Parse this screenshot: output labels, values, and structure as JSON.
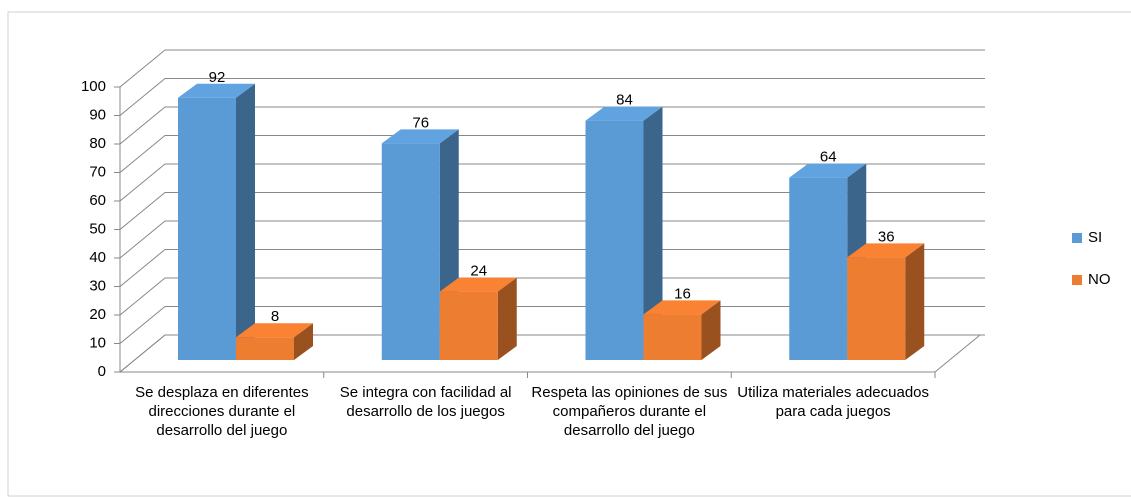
{
  "chart_data": {
    "type": "bar3d",
    "categories": [
      "Se desplaza en diferentes direcciones durante el desarrollo del juego",
      "Se integra con facilidad al desarrollo de los juegos",
      "Respeta las opiniones de sus compañeros durante el desarrollo del juego",
      "Utiliza materiales adecuados para cada juegos"
    ],
    "series": [
      {
        "name": "SI",
        "color": "#5b9bd5",
        "values": [
          92,
          76,
          84,
          64
        ]
      },
      {
        "name": "NO",
        "color": "#ed7d31",
        "values": [
          8,
          24,
          16,
          36
        ]
      }
    ],
    "ylim": [
      0,
      100
    ],
    "yticks": [
      0,
      10,
      20,
      30,
      40,
      50,
      60,
      70,
      80,
      90,
      100
    ],
    "grid": true,
    "legend": "right"
  }
}
